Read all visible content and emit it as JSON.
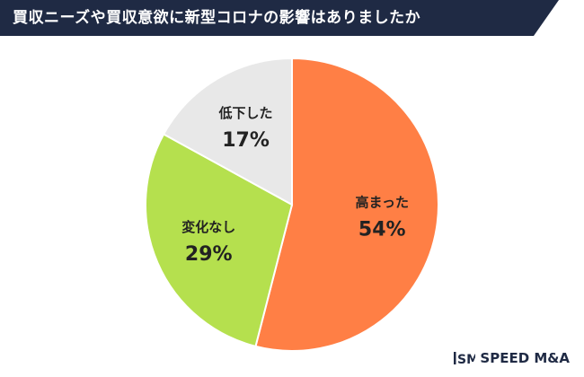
{
  "title": "買収ニーズや買収意欲に新型コロナの影響はありましたか",
  "brand": "SPEED M&A",
  "brand_mark": "SM",
  "colors": {
    "banner": "#1f2a44",
    "text": "#222222",
    "slice_up": "#ff7f45",
    "slice_same": "#b5e04e",
    "slice_down": "#e8e8e8"
  },
  "chart_data": {
    "type": "pie",
    "start": "12 o'clock",
    "direction": "clockwise",
    "slices": [
      {
        "label": "高まった",
        "value": 54,
        "display": "54%",
        "color": "#ff7f45"
      },
      {
        "label": "変化なし",
        "value": 29,
        "display": "29%",
        "color": "#b5e04e"
      },
      {
        "label": "低下した",
        "value": 17,
        "display": "17%",
        "color": "#e8e8e8"
      }
    ]
  }
}
